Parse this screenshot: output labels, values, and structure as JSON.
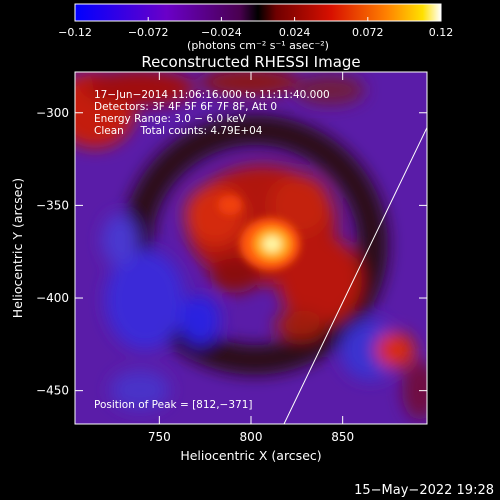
{
  "chart_data": {
    "type": "heatmap",
    "title": "Reconstructed RHESSI Image",
    "xlabel": "Heliocentric X (arcsec)",
    "ylabel": "Heliocentric Y (arcsec)",
    "xlim": [
      704,
      896
    ],
    "ylim": [
      -468,
      -278
    ],
    "x_ticks": [
      750,
      800,
      850
    ],
    "y_ticks": [
      -300,
      -350,
      -400,
      -450
    ],
    "x_tick_labels": [
      "750",
      "800",
      "850"
    ],
    "y_tick_labels": [
      "−300",
      "−350",
      "−400",
      "−450"
    ],
    "colorbar": {
      "min": -0.12,
      "max": 0.12,
      "ticks": [
        -0.12,
        -0.072,
        -0.024,
        0.024,
        0.072,
        0.12
      ],
      "tick_labels": [
        "−0.12",
        "−0.072",
        "−0.024",
        "0.024",
        "0.072",
        "0.12"
      ],
      "units_label": "(photons cm⁻² s⁻¹ asec⁻²)"
    },
    "annotations": [
      "17−Jun−2014 11:06:16.000 to 11:11:40.000",
      "Detectors: 3F 4F 5F 6F 7F 8F, Att 0",
      "Energy Range: 3.0 − 6.0 keV",
      "Clean     Total counts: 4.79E+04"
    ],
    "peak_label": "Position of Peak = [812,−371]",
    "peak": {
      "x": 812,
      "y": -371,
      "value": 0.12
    },
    "limb_line": [
      [
        818,
        -468
      ],
      [
        896,
        -308
      ]
    ],
    "footer_date": "15−May−2022 19:28"
  }
}
